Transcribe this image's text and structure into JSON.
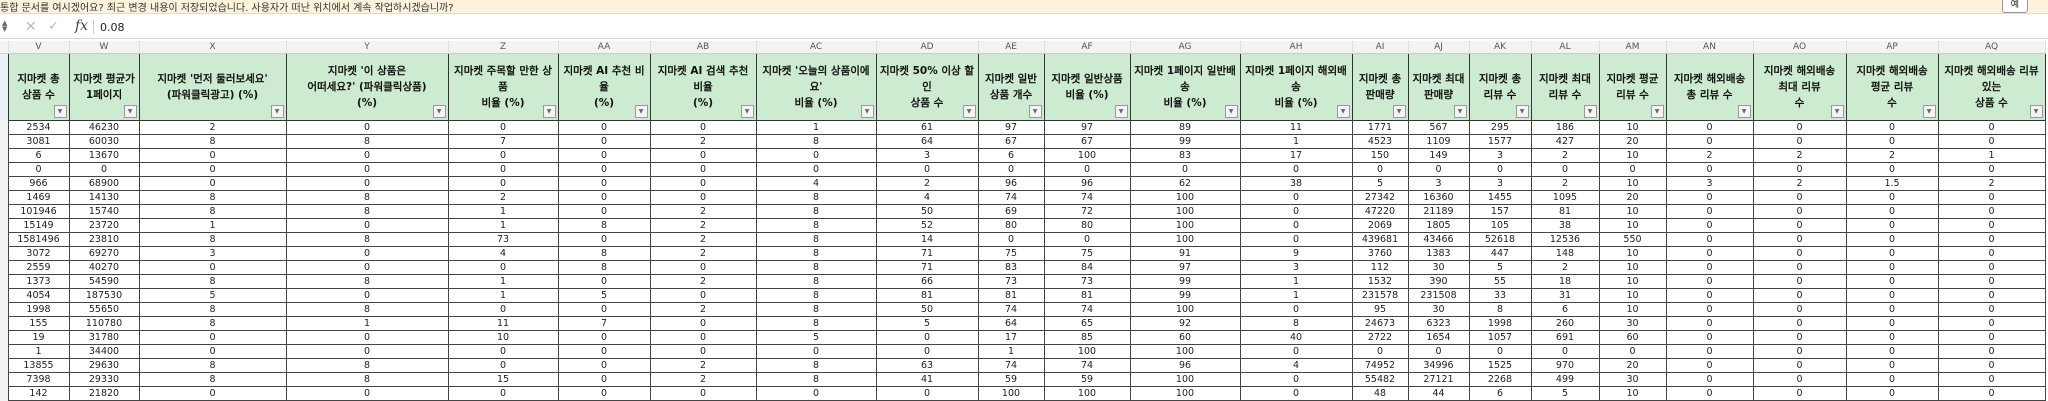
{
  "notification": {
    "text": "통합 문서를 여시겠어요?  최근 변경 내용이 저장되었습니다. 사용자가 떠난 위치에서 계속 작업하시겠습니까?",
    "yes_button": "예"
  },
  "formula_bar": {
    "value": "0.08",
    "fx_label": "fx"
  },
  "columns": [
    "V",
    "W",
    "X",
    "Y",
    "Z",
    "AA",
    "AB",
    "AC",
    "AD",
    "AE",
    "AF",
    "AG",
    "AH",
    "AI",
    "AJ",
    "AK",
    "AL",
    "AM",
    "AN",
    "AO",
    "AP",
    "AQ"
  ],
  "headers": [
    "지마켓 총\n상품 수",
    "지마켓 평균가\n1페이지",
    "지마켓 '먼저 둘러보세요'\n(파워클릭광고) (%)",
    "지마켓 '이 상품은\n어떠세요?' (파워클릭상품)\n(%)",
    "지마켓 주목할 만한 상\n품\n비율 (%)",
    "지마켓 AI 추천 비\n율\n(%)",
    "지마켓 AI 검색 추천\n비율\n(%)",
    "지마켓 '오늘의 상품이에\n요'\n비율 (%)",
    "지마켓 50% 이상 할\n인\n상품 수",
    "지마켓 일반\n상품 개수",
    "지마켓 일반상품\n비율 (%)",
    "지마켓 1페이지 일반배\n송\n비율 (%)",
    "지마켓 1페이지 해외배\n송\n비율 (%)",
    "지마켓 총\n판매량",
    "지마켓 최대\n판매량",
    "지마켓 총\n리뷰 수",
    "지마켓 최대\n리뷰 수",
    "지마켓 평균\n리뷰 수",
    "지마켓 해외배송\n총 리뷰 수",
    "지마켓 해외배송\n최대 리뷰\n수",
    "지마켓 해외배송\n평균 리뷰\n수",
    "지마켓 해외배송 리뷰\n있는\n상품 수"
  ],
  "rows": [
    [
      "2534",
      "46230",
      "2",
      "0",
      "0",
      "0",
      "0",
      "1",
      "61",
      "97",
      "97",
      "89",
      "11",
      "1771",
      "567",
      "295",
      "186",
      "10",
      "0",
      "0",
      "0",
      "0"
    ],
    [
      "3081",
      "60030",
      "8",
      "8",
      "7",
      "0",
      "2",
      "8",
      "64",
      "67",
      "67",
      "99",
      "1",
      "4523",
      "1109",
      "1577",
      "427",
      "20",
      "0",
      "0",
      "0",
      "0"
    ],
    [
      "6",
      "13670",
      "0",
      "0",
      "0",
      "0",
      "0",
      "0",
      "3",
      "6",
      "100",
      "83",
      "17",
      "150",
      "149",
      "3",
      "2",
      "10",
      "2",
      "2",
      "2",
      "1"
    ],
    [
      "0",
      "0",
      "0",
      "0",
      "0",
      "0",
      "0",
      "0",
      "0",
      "0",
      "0",
      "0",
      "0",
      "0",
      "0",
      "0",
      "0",
      "0",
      "0",
      "0",
      "0",
      "0"
    ],
    [
      "966",
      "68900",
      "0",
      "0",
      "0",
      "0",
      "0",
      "4",
      "2",
      "96",
      "96",
      "62",
      "38",
      "5",
      "3",
      "3",
      "2",
      "10",
      "3",
      "2",
      "1.5",
      "2"
    ],
    [
      "1469",
      "14130",
      "8",
      "8",
      "2",
      "0",
      "0",
      "8",
      "4",
      "74",
      "74",
      "100",
      "0",
      "27342",
      "16360",
      "1455",
      "1095",
      "20",
      "0",
      "0",
      "0",
      "0"
    ],
    [
      "101946",
      "15740",
      "8",
      "8",
      "1",
      "0",
      "2",
      "8",
      "50",
      "69",
      "72",
      "100",
      "0",
      "47220",
      "21189",
      "157",
      "81",
      "10",
      "0",
      "0",
      "0",
      "0"
    ],
    [
      "15149",
      "23720",
      "1",
      "0",
      "1",
      "8",
      "2",
      "8",
      "52",
      "80",
      "80",
      "100",
      "0",
      "2069",
      "1805",
      "105",
      "38",
      "10",
      "0",
      "0",
      "0",
      "0"
    ],
    [
      "1581496",
      "23810",
      "8",
      "8",
      "73",
      "0",
      "2",
      "8",
      "14",
      "0",
      "0",
      "100",
      "0",
      "439681",
      "43466",
      "52618",
      "12536",
      "550",
      "0",
      "0",
      "0",
      "0"
    ],
    [
      "3072",
      "69270",
      "3",
      "0",
      "4",
      "8",
      "2",
      "8",
      "71",
      "75",
      "75",
      "91",
      "9",
      "3760",
      "1383",
      "447",
      "148",
      "10",
      "0",
      "0",
      "0",
      "0"
    ],
    [
      "2559",
      "40270",
      "0",
      "0",
      "0",
      "8",
      "0",
      "8",
      "71",
      "83",
      "84",
      "97",
      "3",
      "112",
      "30",
      "5",
      "2",
      "10",
      "0",
      "0",
      "0",
      "0"
    ],
    [
      "1373",
      "54590",
      "8",
      "8",
      "1",
      "0",
      "2",
      "8",
      "66",
      "73",
      "73",
      "99",
      "1",
      "1532",
      "390",
      "55",
      "18",
      "10",
      "0",
      "0",
      "0",
      "0"
    ],
    [
      "4054",
      "187530",
      "5",
      "0",
      "1",
      "5",
      "0",
      "8",
      "81",
      "81",
      "81",
      "99",
      "1",
      "231578",
      "231508",
      "33",
      "31",
      "10",
      "0",
      "0",
      "0",
      "0"
    ],
    [
      "1998",
      "55650",
      "8",
      "8",
      "0",
      "0",
      "2",
      "8",
      "50",
      "74",
      "74",
      "100",
      "0",
      "95",
      "30",
      "8",
      "6",
      "10",
      "0",
      "0",
      "0",
      "0"
    ],
    [
      "155",
      "110780",
      "8",
      "1",
      "11",
      "7",
      "0",
      "8",
      "5",
      "64",
      "65",
      "92",
      "8",
      "24673",
      "6323",
      "1998",
      "260",
      "30",
      "0",
      "0",
      "0",
      "0"
    ],
    [
      "19",
      "31780",
      "0",
      "0",
      "10",
      "0",
      "0",
      "5",
      "0",
      "17",
      "85",
      "60",
      "40",
      "2722",
      "1654",
      "1057",
      "691",
      "60",
      "0",
      "0",
      "0",
      "0"
    ],
    [
      "1",
      "34400",
      "0",
      "0",
      "0",
      "0",
      "0",
      "0",
      "0",
      "1",
      "100",
      "100",
      "0",
      "0",
      "0",
      "0",
      "0",
      "0",
      "0",
      "0",
      "0",
      "0"
    ],
    [
      "13855",
      "29630",
      "8",
      "8",
      "0",
      "0",
      "2",
      "8",
      "63",
      "74",
      "74",
      "96",
      "4",
      "74952",
      "34996",
      "1525",
      "970",
      "20",
      "0",
      "0",
      "0",
      "0"
    ],
    [
      "7398",
      "29330",
      "8",
      "8",
      "15",
      "0",
      "2",
      "8",
      "41",
      "59",
      "59",
      "100",
      "0",
      "55482",
      "27121",
      "2268",
      "499",
      "30",
      "0",
      "0",
      "0",
      "0"
    ],
    [
      "142",
      "21820",
      "0",
      "0",
      "0",
      "0",
      "0",
      "0",
      "0",
      "100",
      "100",
      "100",
      "0",
      "48",
      "44",
      "6",
      "5",
      "10",
      "0",
      "0",
      "0",
      "0"
    ]
  ],
  "colors": {
    "header_fill": "#cdebd0",
    "notification_bg": "#fdf3dc"
  },
  "icons": {
    "filter": "filter-dropdown-icon",
    "cancel": "close-icon",
    "enter": "check-icon",
    "function": "fx-icon"
  }
}
